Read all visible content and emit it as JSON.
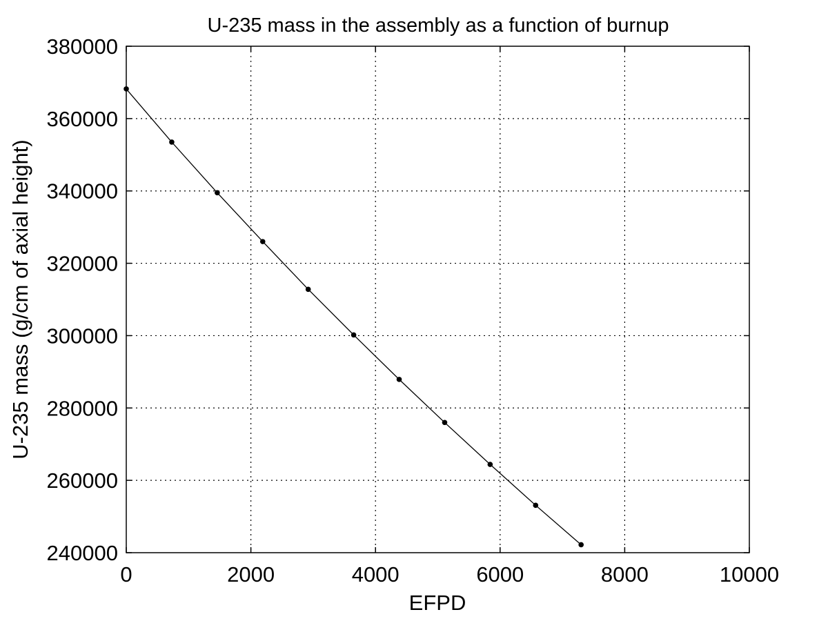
{
  "chart_data": {
    "type": "line",
    "title": "U-235 mass in the assembly as a function of burnup",
    "xlabel": "EFPD",
    "ylabel": "U-235 mass (g/cm of axial height)",
    "xlim": [
      0,
      10000
    ],
    "ylim": [
      240000,
      380000
    ],
    "xticks": [
      0,
      2000,
      4000,
      6000,
      8000,
      10000
    ],
    "yticks": [
      240000,
      260000,
      280000,
      300000,
      320000,
      340000,
      360000,
      380000
    ],
    "grid": true,
    "legend": "none",
    "series": [
      {
        "color": "#000000",
        "marker": "dot",
        "x": [
          0,
          730,
          1460,
          2190,
          2920,
          3650,
          4380,
          5110,
          5840,
          6570,
          7300
        ],
        "y": [
          368200,
          353500,
          339500,
          326000,
          312800,
          300200,
          287900,
          276000,
          264400,
          253100,
          242200
        ]
      }
    ]
  }
}
